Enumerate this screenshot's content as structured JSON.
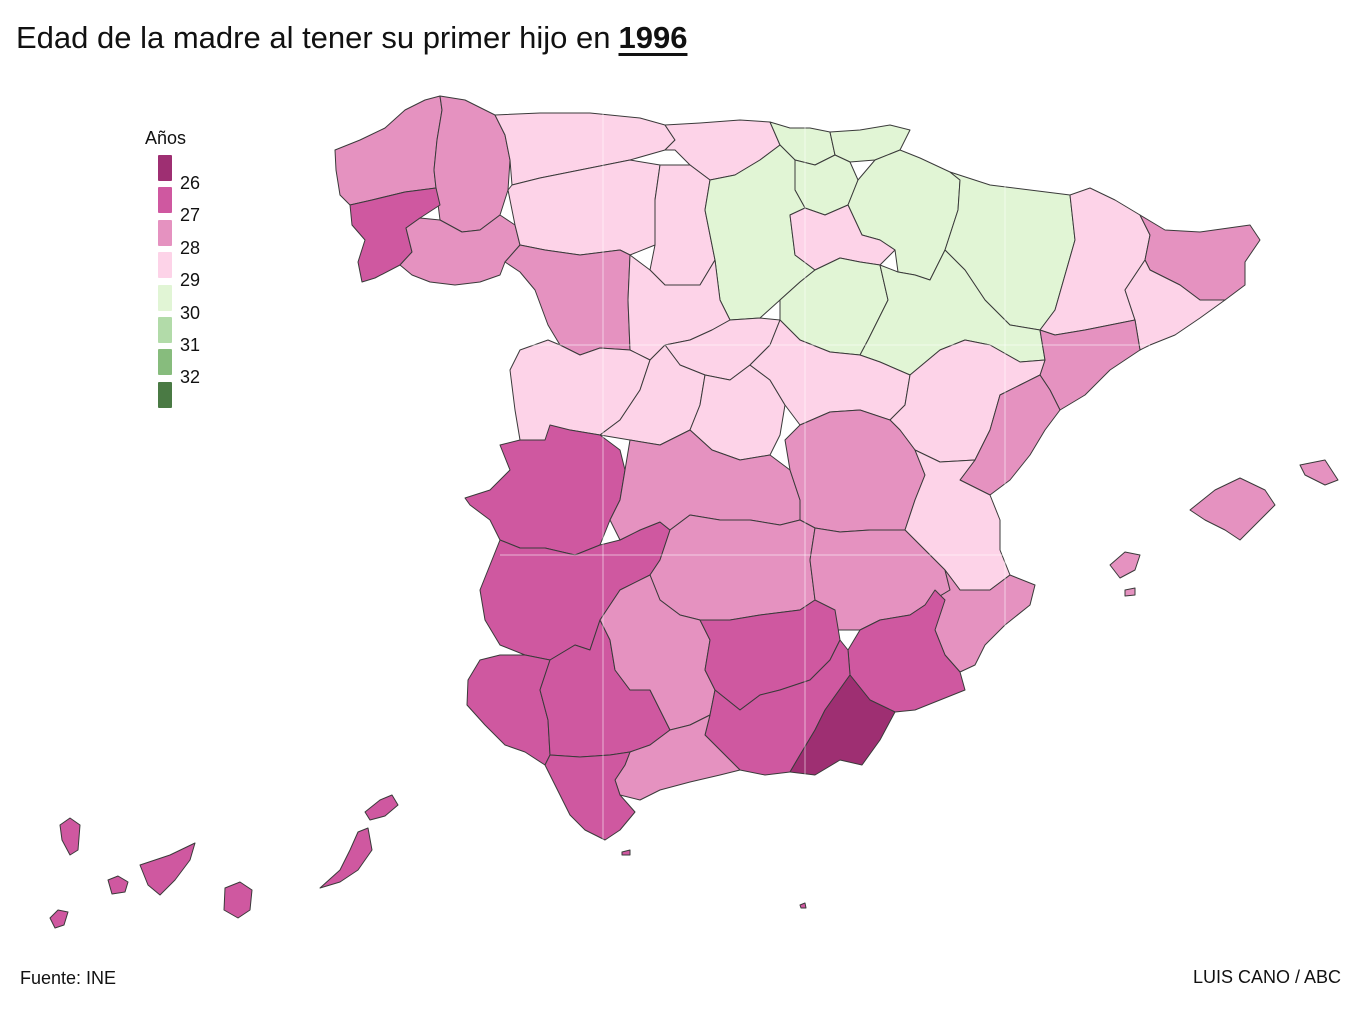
{
  "title": {
    "text": "Edad de la madre al tener su primer hijo en",
    "year": "1996"
  },
  "legend": {
    "title": "Años",
    "items": [
      {
        "label": "26",
        "color": "#9e2f72"
      },
      {
        "label": "27",
        "color": "#cf58a0"
      },
      {
        "label": "28",
        "color": "#e592c0"
      },
      {
        "label": "29",
        "color": "#fdd3e8"
      },
      {
        "label": "30",
        "color": "#e1f5d5"
      },
      {
        "label": "31",
        "color": "#b2dba9"
      },
      {
        "label": "32",
        "color": "#87bc7d"
      },
      {
        "label": "",
        "color": "#4a7a44"
      }
    ]
  },
  "palette": {
    "c26": "#9e2f72",
    "c27": "#cf58a0",
    "c28": "#e592c0",
    "c29": "#fdd3e8",
    "c30": "#e1f5d5",
    "border": "#3a3a3a"
  },
  "footer": {
    "source": "Fuente: INE",
    "credit": "LUIS CANO / ABC"
  }
}
